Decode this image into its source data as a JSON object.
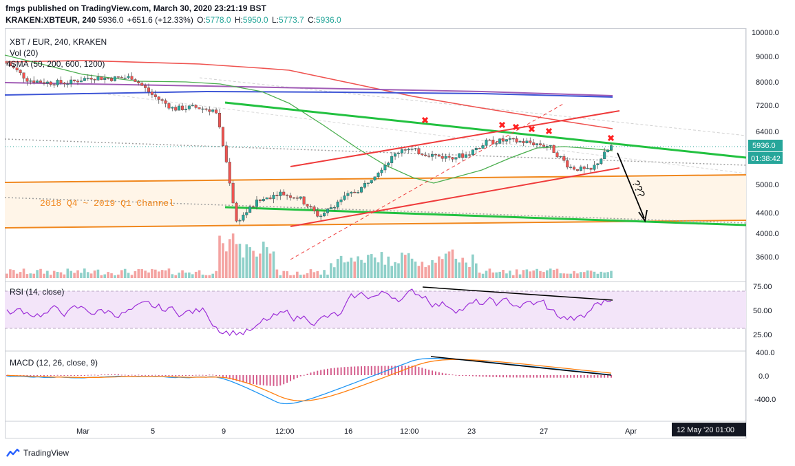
{
  "header": {
    "publisher_line": "fmgs published on TradingView.com, March 30, 2020 23:21:19 BST",
    "symbol_line": "KRAKEN:XBTEUR, 240",
    "last": "5936.0",
    "change": "+651.6 (+12.33%)",
    "o_label": "O:",
    "o": "5778.0",
    "h_label": "H:",
    "h": "5950.0",
    "l_label": "L:",
    "l": "5773.7",
    "c_label": "C:",
    "c": "5936.0"
  },
  "legend": {
    "title": "XBT / EUR, 240, KRAKEN",
    "vol": "Vol (20)",
    "sma": "4SMA (50, 200, 600, 1200)",
    "rsi": "RSI (14, close)",
    "macd": "MACD (12, 26, close, 9)"
  },
  "annotations": {
    "channel_label": "2018 Q4 ~ 2019 Q1 Channel",
    "question": "???",
    "price_tag": "5936.0",
    "countdown_tag": "01:38:42",
    "date_tag": "12 May '20   01:00"
  },
  "colors": {
    "up": "#26a69a",
    "down": "#ef5350",
    "green_line": "#22c140",
    "red_line": "#ef3b3b",
    "orange": "#f0871d",
    "purple": "#a05bb5",
    "blue": "#3e56d6",
    "rsi": "#9c2ed8",
    "macd": "#2196f3",
    "signal": "#ff7f0e",
    "cross": "#ff1f1f"
  },
  "chart_data": {
    "type": "candlestick",
    "symbol": "XBT / EUR",
    "timeframe": "240",
    "exchange": "KRAKEN",
    "price_axis": {
      "ticks": [
        10000.0,
        9000.0,
        8000.0,
        7200.0,
        6400.0,
        5000.0,
        4400.0,
        4000.0,
        3600.0
      ],
      "tick_labels": [
        "10000.0",
        "9000.0",
        "8000.0",
        "7200.0",
        "6400.0",
        "5000.0",
        "4400.0",
        "4000.0",
        "3600.0"
      ],
      "scale": "log"
    },
    "x_axis": {
      "tick_labels": [
        "Mar",
        "5",
        "9",
        "12:00",
        "16",
        "12:00",
        "23",
        "27",
        "Apr"
      ]
    },
    "close_path": [
      [
        "Mar 01",
        8700
      ],
      [
        "Mar 02",
        8050
      ],
      [
        "Mar 03",
        7950
      ],
      [
        "Mar 04",
        7950
      ],
      [
        "Mar 05",
        8150
      ],
      [
        "Mar 06",
        8100
      ],
      [
        "Mar 07",
        8150
      ],
      [
        "Mar 08",
        7500
      ],
      [
        "Mar 09",
        7050
      ],
      [
        "Mar 10",
        7100
      ],
      [
        "Mar 11",
        7000
      ],
      [
        "Mar 12",
        4200
      ],
      [
        "Mar 13",
        4600
      ],
      [
        "Mar 14",
        4800
      ],
      [
        "Mar 15",
        4700
      ],
      [
        "Mar 16",
        4300
      ],
      [
        "Mar 17",
        4650
      ],
      [
        "Mar 18",
        4900
      ],
      [
        "Mar 19",
        5400
      ],
      [
        "Mar 20",
        5900
      ],
      [
        "Mar 21",
        5750
      ],
      [
        "Mar 22",
        5650
      ],
      [
        "Mar 23",
        5700
      ],
      [
        "Mar 24",
        6050
      ],
      [
        "Mar 25",
        6100
      ],
      [
        "Mar 26",
        6050
      ],
      [
        "Mar 27",
        5950
      ],
      [
        "Mar 28",
        5400
      ],
      [
        "Mar 29",
        5300
      ],
      [
        "Mar 30",
        5936
      ]
    ],
    "rsi_axis": {
      "ticks": [
        75.0,
        50.0,
        25.0
      ],
      "tick_labels": [
        "75.00",
        "50.00",
        "25.00"
      ]
    },
    "macd_axis": {
      "ticks": [
        400.0,
        0.0,
        -400.0
      ],
      "tick_labels": [
        "400.0",
        "0.0",
        "-400.0"
      ]
    }
  }
}
